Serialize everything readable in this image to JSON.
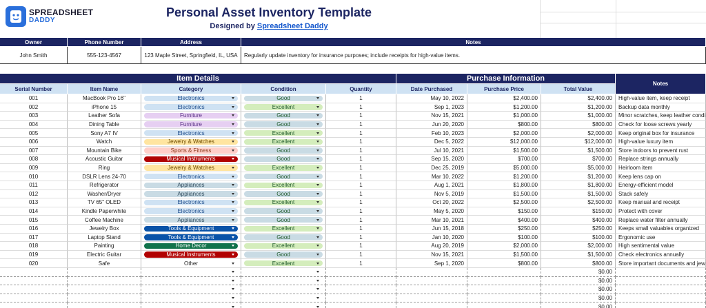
{
  "header": {
    "logo_top": "SPREADSHEET",
    "logo_bottom": "DADDY",
    "title": "Personal Asset Inventory Template",
    "subtitle_prefix": "Designed by",
    "subtitle_link": "Spreadsheet Daddy"
  },
  "owner_table": {
    "headers": [
      "Owner",
      "Phone Number",
      "Address",
      "Notes"
    ],
    "values": [
      "John Smith",
      "555-123-4567",
      "123 Maple Street, Springfield, IL, USA",
      "Regularly update inventory for insurance purposes; include receipts for high-value items."
    ]
  },
  "inventory": {
    "groups": [
      "Item Details",
      "Purchase Information"
    ],
    "notes_header": "Notes",
    "columns": [
      "Serial Number",
      "Item Name",
      "Category",
      "Condition",
      "Quantity",
      "Date Purchased",
      "Purchase Price",
      "Total Value"
    ],
    "rows": [
      {
        "cells": [
          "001",
          "MacBook Pro 16\"",
          "Electronics",
          "Good",
          "1",
          "May 10, 2022",
          "$2,400.00",
          "$2,400.00",
          "High-value item, keep receipt"
        ],
        "category_chip": {
          "bg": "#cfe2f3",
          "fg": "#1f4e8c"
        },
        "condition_chip": "#c9dbe4"
      },
      {
        "cells": [
          "002",
          "iPhone 15",
          "Electronics",
          "Excellent",
          "1",
          "Sep 1, 2023",
          "$1,200.00",
          "$1,200.00",
          "Backup data monthly"
        ],
        "category_chip": {
          "bg": "#cfe2f3",
          "fg": "#1f4e8c"
        },
        "condition_chip": "#d4edbc"
      },
      {
        "cells": [
          "003",
          "Leather Sofa",
          "Furniture",
          "Good",
          "1",
          "Nov 15, 2021",
          "$1,000.00",
          "$1,000.00",
          "Minor scratches, keep leather condit"
        ],
        "category_chip": {
          "bg": "#e6cff2",
          "fg": "#5a3286"
        },
        "condition_chip": "#c9dbe4"
      },
      {
        "cells": [
          "004",
          "Dining Table",
          "Furniture",
          "Good",
          "1",
          "Jun 20, 2020",
          "$800.00",
          "$800.00",
          "Check for loose screws yearly"
        ],
        "category_chip": {
          "bg": "#e6cff2",
          "fg": "#5a3286"
        },
        "condition_chip": "#c9dbe4"
      },
      {
        "cells": [
          "005",
          "Sony A7 IV",
          "Electronics",
          "Excellent",
          "1",
          "Feb 10, 2023",
          "$2,000.00",
          "$2,000.00",
          "Keep original box for insurance"
        ],
        "category_chip": {
          "bg": "#cfe2f3",
          "fg": "#1f4e8c"
        },
        "condition_chip": "#d4edbc"
      },
      {
        "cells": [
          "006",
          "Watch",
          "Jewelry & Watches",
          "Excellent",
          "1",
          "Dec 5, 2022",
          "$12,000.00",
          "$12,000.00",
          "High-value luxury item"
        ],
        "category_chip": {
          "bg": "#ffe5a0",
          "fg": "#6b4a00"
        },
        "condition_chip": "#d4edbc"
      },
      {
        "cells": [
          "007",
          "Mountain Bike",
          "Sports & Fitness",
          "Good",
          "1",
          "Jul 10, 2021",
          "$1,500.00",
          "$1,500.00",
          "Store indoors to prevent rust"
        ],
        "category_chip": {
          "bg": "#ffcfc9",
          "fg": "#8a3a1c"
        },
        "condition_chip": "#c9dbe4"
      },
      {
        "cells": [
          "008",
          "Acoustic Guitar",
          "Musical Instruments",
          "Good",
          "1",
          "Sep 15, 2020",
          "$700.00",
          "$700.00",
          "Replace strings annually"
        ],
        "category_chip": {
          "bg": "#b10202",
          "fg": "#ffffff"
        },
        "condition_chip": "#c9dbe4"
      },
      {
        "cells": [
          "009",
          "Ring",
          "Jewelry & Watches",
          "Excellent",
          "1",
          "Dec 25, 2019",
          "$5,000.00",
          "$5,000.00",
          "Heirloom item"
        ],
        "category_chip": {
          "bg": "#ffe5a0",
          "fg": "#6b4a00"
        },
        "condition_chip": "#d4edbc"
      },
      {
        "cells": [
          "010",
          "DSLR Lens 24-70",
          "Electronics",
          "Good",
          "1",
          "Mar 10, 2022",
          "$1,200.00",
          "$1,200.00",
          "Keep lens cap on"
        ],
        "category_chip": {
          "bg": "#cfe2f3",
          "fg": "#1f4e8c"
        },
        "condition_chip": "#c9dbe4"
      },
      {
        "cells": [
          "011",
          "Refrigerator",
          "Appliances",
          "Excellent",
          "1",
          "Aug 1, 2021",
          "$1,800.00",
          "$1,800.00",
          "Energy-efficient model"
        ],
        "category_chip": {
          "bg": "#c9dbe4",
          "fg": "#2c4a5c"
        },
        "condition_chip": "#d4edbc"
      },
      {
        "cells": [
          "012",
          "Washer/Dryer",
          "Appliances",
          "Good",
          "1",
          "Nov 5, 2019",
          "$1,500.00",
          "$1,500.00",
          "Stack safely"
        ],
        "category_chip": {
          "bg": "#c9dbe4",
          "fg": "#2c4a5c"
        },
        "condition_chip": "#c9dbe4"
      },
      {
        "cells": [
          "013",
          "TV 65\" OLED",
          "Electronics",
          "Excellent",
          "1",
          "Oct 20, 2022",
          "$2,500.00",
          "$2,500.00",
          "Keep manual and receipt"
        ],
        "category_chip": {
          "bg": "#cfe2f3",
          "fg": "#1f4e8c"
        },
        "condition_chip": "#d4edbc"
      },
      {
        "cells": [
          "014",
          "Kindle Paperwhite",
          "Electronics",
          "Good",
          "1",
          "May 5, 2020",
          "$150.00",
          "$150.00",
          "Protect with cover"
        ],
        "category_chip": {
          "bg": "#cfe2f3",
          "fg": "#1f4e8c"
        },
        "condition_chip": "#c9dbe4"
      },
      {
        "cells": [
          "015",
          "Coffee Machine",
          "Appliances",
          "Good",
          "1",
          "Mar 10, 2021",
          "$400.00",
          "$400.00",
          "Replace water filter annually"
        ],
        "category_chip": {
          "bg": "#c9dbe4",
          "fg": "#2c4a5c"
        },
        "condition_chip": "#c9dbe4"
      },
      {
        "cells": [
          "016",
          "Jewelry Box",
          "Tools & Equipment",
          "Excellent",
          "1",
          "Jun 15, 2018",
          "$250.00",
          "$250.00",
          "Keeps small valuables organized"
        ],
        "category_chip": {
          "bg": "#0a53a8",
          "fg": "#ffffff"
        },
        "condition_chip": "#d4edbc"
      },
      {
        "cells": [
          "017",
          "Laptop Stand",
          "Tools & Equipment",
          "Good",
          "1",
          "Jan 10, 2020",
          "$100.00",
          "$100.00",
          "Ergonomic use"
        ],
        "category_chip": {
          "bg": "#0a53a8",
          "fg": "#ffffff"
        },
        "condition_chip": "#c9dbe4"
      },
      {
        "cells": [
          "018",
          "Painting",
          "Home Decor",
          "Excellent",
          "1",
          "Aug 20, 2019",
          "$2,000.00",
          "$2,000.00",
          "High sentimental value"
        ],
        "category_chip": {
          "bg": "#11734b",
          "fg": "#ffffff"
        },
        "condition_chip": "#d4edbc"
      },
      {
        "cells": [
          "019",
          "Electric Guitar",
          "Musical Instruments",
          "Good",
          "1",
          "Nov 15, 2021",
          "$1,500.00",
          "$1,500.00",
          "Check electronics annually"
        ],
        "category_chip": {
          "bg": "#b10202",
          "fg": "#ffffff"
        },
        "condition_chip": "#c9dbe4"
      },
      {
        "cells": [
          "020",
          "Safe",
          "Other",
          "Excellent",
          "1",
          "Sep 1, 2020",
          "$800.00",
          "$800.00",
          "Store important documents and jewe"
        ],
        "category_chip": null,
        "condition_chip": "#d4edbc"
      }
    ],
    "empty_totals": [
      "$0.00",
      "$0.00",
      "$0.00",
      "$0.00",
      "$0.00"
    ]
  }
}
